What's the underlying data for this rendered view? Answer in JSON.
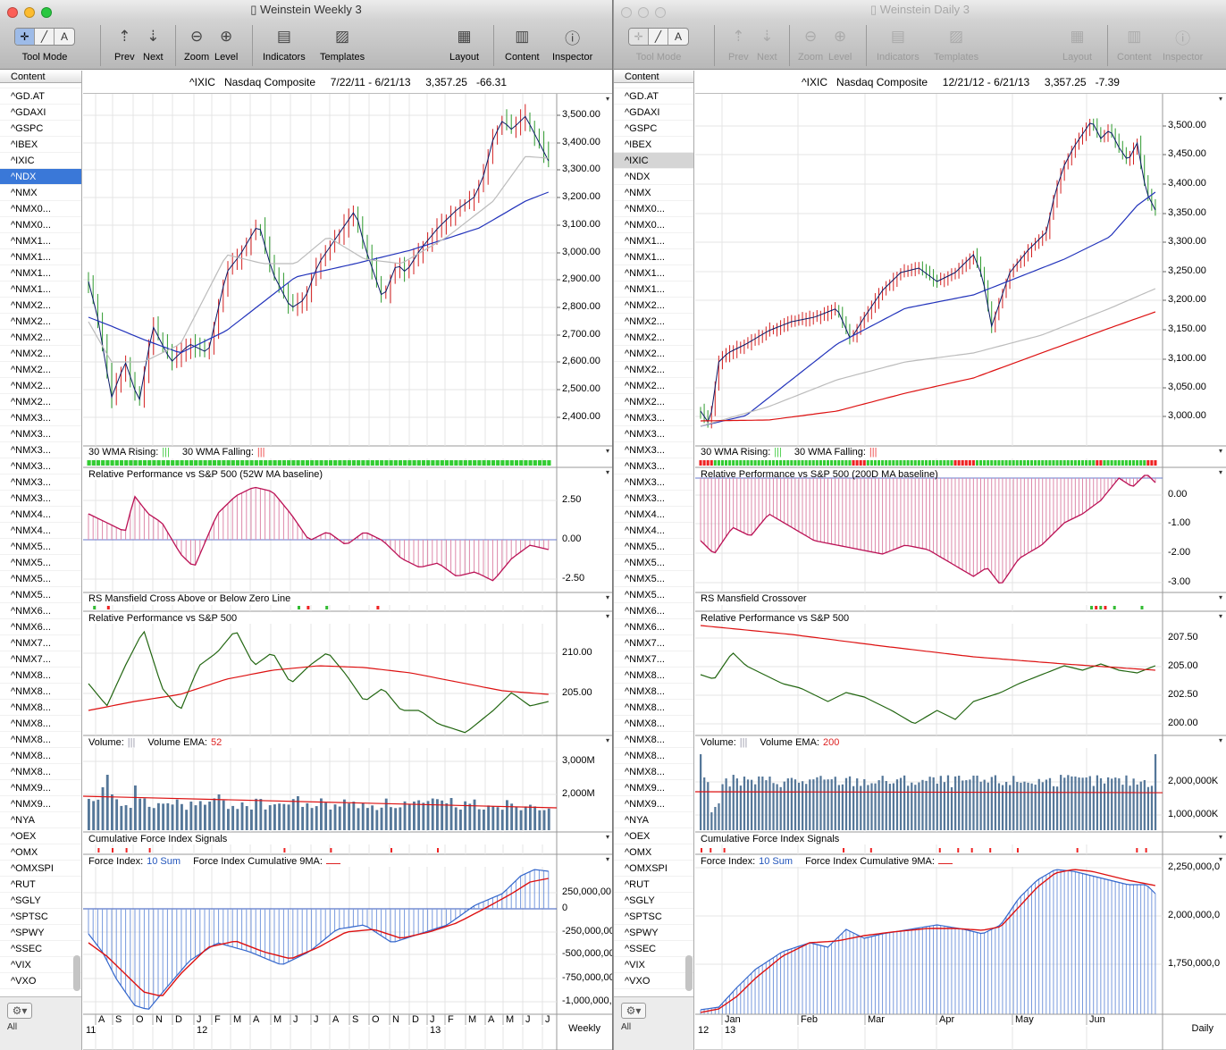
{
  "windows": [
    {
      "title": "Weinstein Weekly 3",
      "header": {
        "symbol": "^IXIC",
        "name": "Nasdaq Composite",
        "range": "7/22/11 - 6/21/13",
        "price": "3,357.25",
        "change": "-66.31"
      },
      "sidebar_selected": 5,
      "period": "Weekly",
      "price_axis": [
        "3,500.00",
        "3,400.00",
        "3,300.00",
        "3,200.00",
        "3,100.00",
        "3,000.00",
        "2,900.00",
        "2,800.00",
        "2,700.00",
        "2,600.00",
        "2,500.00",
        "2,400.00"
      ],
      "panels": {
        "wma": {
          "rising": "30 WMA Rising:",
          "rising_mark": "|||",
          "falling": "30 WMA Falling:",
          "falling_mark": "|||"
        },
        "rp1": {
          "title": "Relative Performance vs S&P 500 (52W MA baseline)",
          "axis": [
            "2.50",
            "0.00",
            "-2.50"
          ]
        },
        "rsm": {
          "title": "RS Mansfield Cross Above or Below Zero Line"
        },
        "rp2": {
          "title": "Relative Performance vs S&P 500",
          "axis": [
            "210.00",
            "205.00"
          ]
        },
        "vol": {
          "label": "Volume:",
          "label_mark": "|||",
          "ema_label": "Volume EMA:",
          "ema_value": "52",
          "axis": [
            "3,000M",
            "2,000M"
          ]
        },
        "cfi": {
          "title": "Cumulative Force Index Signals"
        },
        "fi": {
          "label": "Force Index:",
          "sum": "10 Sum",
          "cum_label": "Force Index Cumulative 9MA:",
          "axis": [
            "250,000,00",
            "0",
            "-250,000,00",
            "-500,000,00",
            "-750,000,00",
            "-1,000,000,"
          ]
        }
      },
      "time_axis": {
        "months": [
          "A",
          "S",
          "O",
          "N",
          "D",
          "J",
          "F",
          "M",
          "A",
          "M",
          "J",
          "J",
          "A",
          "S",
          "O",
          "N",
          "D",
          "J",
          "F",
          "M",
          "A",
          "M",
          "J",
          "J"
        ],
        "years": [
          "11",
          "12",
          "13"
        ]
      }
    },
    {
      "title": "Weinstein Daily 3",
      "header": {
        "symbol": "^IXIC",
        "name": "Nasdaq Composite",
        "range": "12/21/12 - 6/21/13",
        "price": "3,357.25",
        "change": "-7.39"
      },
      "sidebar_selected": 4,
      "period": "Daily",
      "price_axis": [
        "3,500.00",
        "3,450.00",
        "3,400.00",
        "3,350.00",
        "3,300.00",
        "3,250.00",
        "3,200.00",
        "3,150.00",
        "3,100.00",
        "3,050.00",
        "3,000.00"
      ],
      "panels": {
        "wma": {
          "rising": "30 WMA Rising:",
          "rising_mark": "|||",
          "falling": "30 WMA Falling:",
          "falling_mark": "|||"
        },
        "rp1": {
          "title": "Relative Performance vs S&P 500 (200D MA baseline)",
          "axis": [
            "0.00",
            "-1.00",
            "-2.00",
            "-3.00"
          ]
        },
        "rsm": {
          "title": "RS Mansfield Crossover"
        },
        "rp2": {
          "title": "Relative Performance vs S&P 500",
          "axis": [
            "207.50",
            "205.00",
            "202.50",
            "200.00"
          ]
        },
        "vol": {
          "label": "Volume:",
          "label_mark": "|||",
          "ema_label": "Volume EMA:",
          "ema_value": "200",
          "axis": [
            "2,000,000K",
            "1,000,000K"
          ]
        },
        "cfi": {
          "title": "Cumulative Force Index Signals"
        },
        "fi": {
          "label": "Force Index:",
          "sum": "10 Sum",
          "cum_label": "Force Index Cumulative 9MA:",
          "axis": [
            "2,250,000,0",
            "2,000,000,0",
            "1,750,000,0"
          ]
        }
      },
      "time_axis": {
        "months": [
          "Jan",
          "Feb",
          "Mar",
          "Apr",
          "May",
          "Jun"
        ],
        "years": [
          "12",
          "13"
        ]
      }
    }
  ],
  "toolbar": {
    "tool_mode": "Tool Mode",
    "prev": "Prev",
    "next": "Next",
    "zoom": "Zoom",
    "level": "Level",
    "indicators": "Indicators",
    "templates": "Templates",
    "layout": "Layout",
    "content": "Content",
    "inspector": "Inspector"
  },
  "sidebar": {
    "header": "Content",
    "items": [
      "^GD.AT",
      "^GDAXI",
      "^GSPC",
      "^IBEX",
      "^IXIC",
      "^NDX",
      "^NMX",
      "^NMX0...",
      "^NMX0...",
      "^NMX1...",
      "^NMX1...",
      "^NMX1...",
      "^NMX1...",
      "^NMX2...",
      "^NMX2...",
      "^NMX2...",
      "^NMX2...",
      "^NMX2...",
      "^NMX2...",
      "^NMX2...",
      "^NMX3...",
      "^NMX3...",
      "^NMX3...",
      "^NMX3...",
      "^NMX3...",
      "^NMX3...",
      "^NMX4...",
      "^NMX4...",
      "^NMX5...",
      "^NMX5...",
      "^NMX5...",
      "^NMX5...",
      "^NMX6...",
      "^NMX6...",
      "^NMX7...",
      "^NMX7...",
      "^NMX8...",
      "^NMX8...",
      "^NMX8...",
      "^NMX8...",
      "^NMX8...",
      "^NMX8...",
      "^NMX8...",
      "^NMX9...",
      "^NMX9...",
      "^NYA",
      "^OEX",
      "^OMX",
      "^OMXSPI",
      "^RUT",
      "^SGLY",
      "^SPTSC",
      "^SPWY",
      "^SSEC",
      "^VIX",
      "^VXO"
    ],
    "footer_label": "All"
  },
  "colors": {
    "candle_up": "#2e9a2e",
    "candle_down": "#d42020",
    "ma_blue": "#2233bb",
    "ma_gray": "#bbbbbb",
    "ma_red": "#dd1111",
    "rp_magenta": "#bb1155",
    "rp_green": "#226611",
    "volume": "#557799",
    "force_blue": "#3366cc"
  }
}
